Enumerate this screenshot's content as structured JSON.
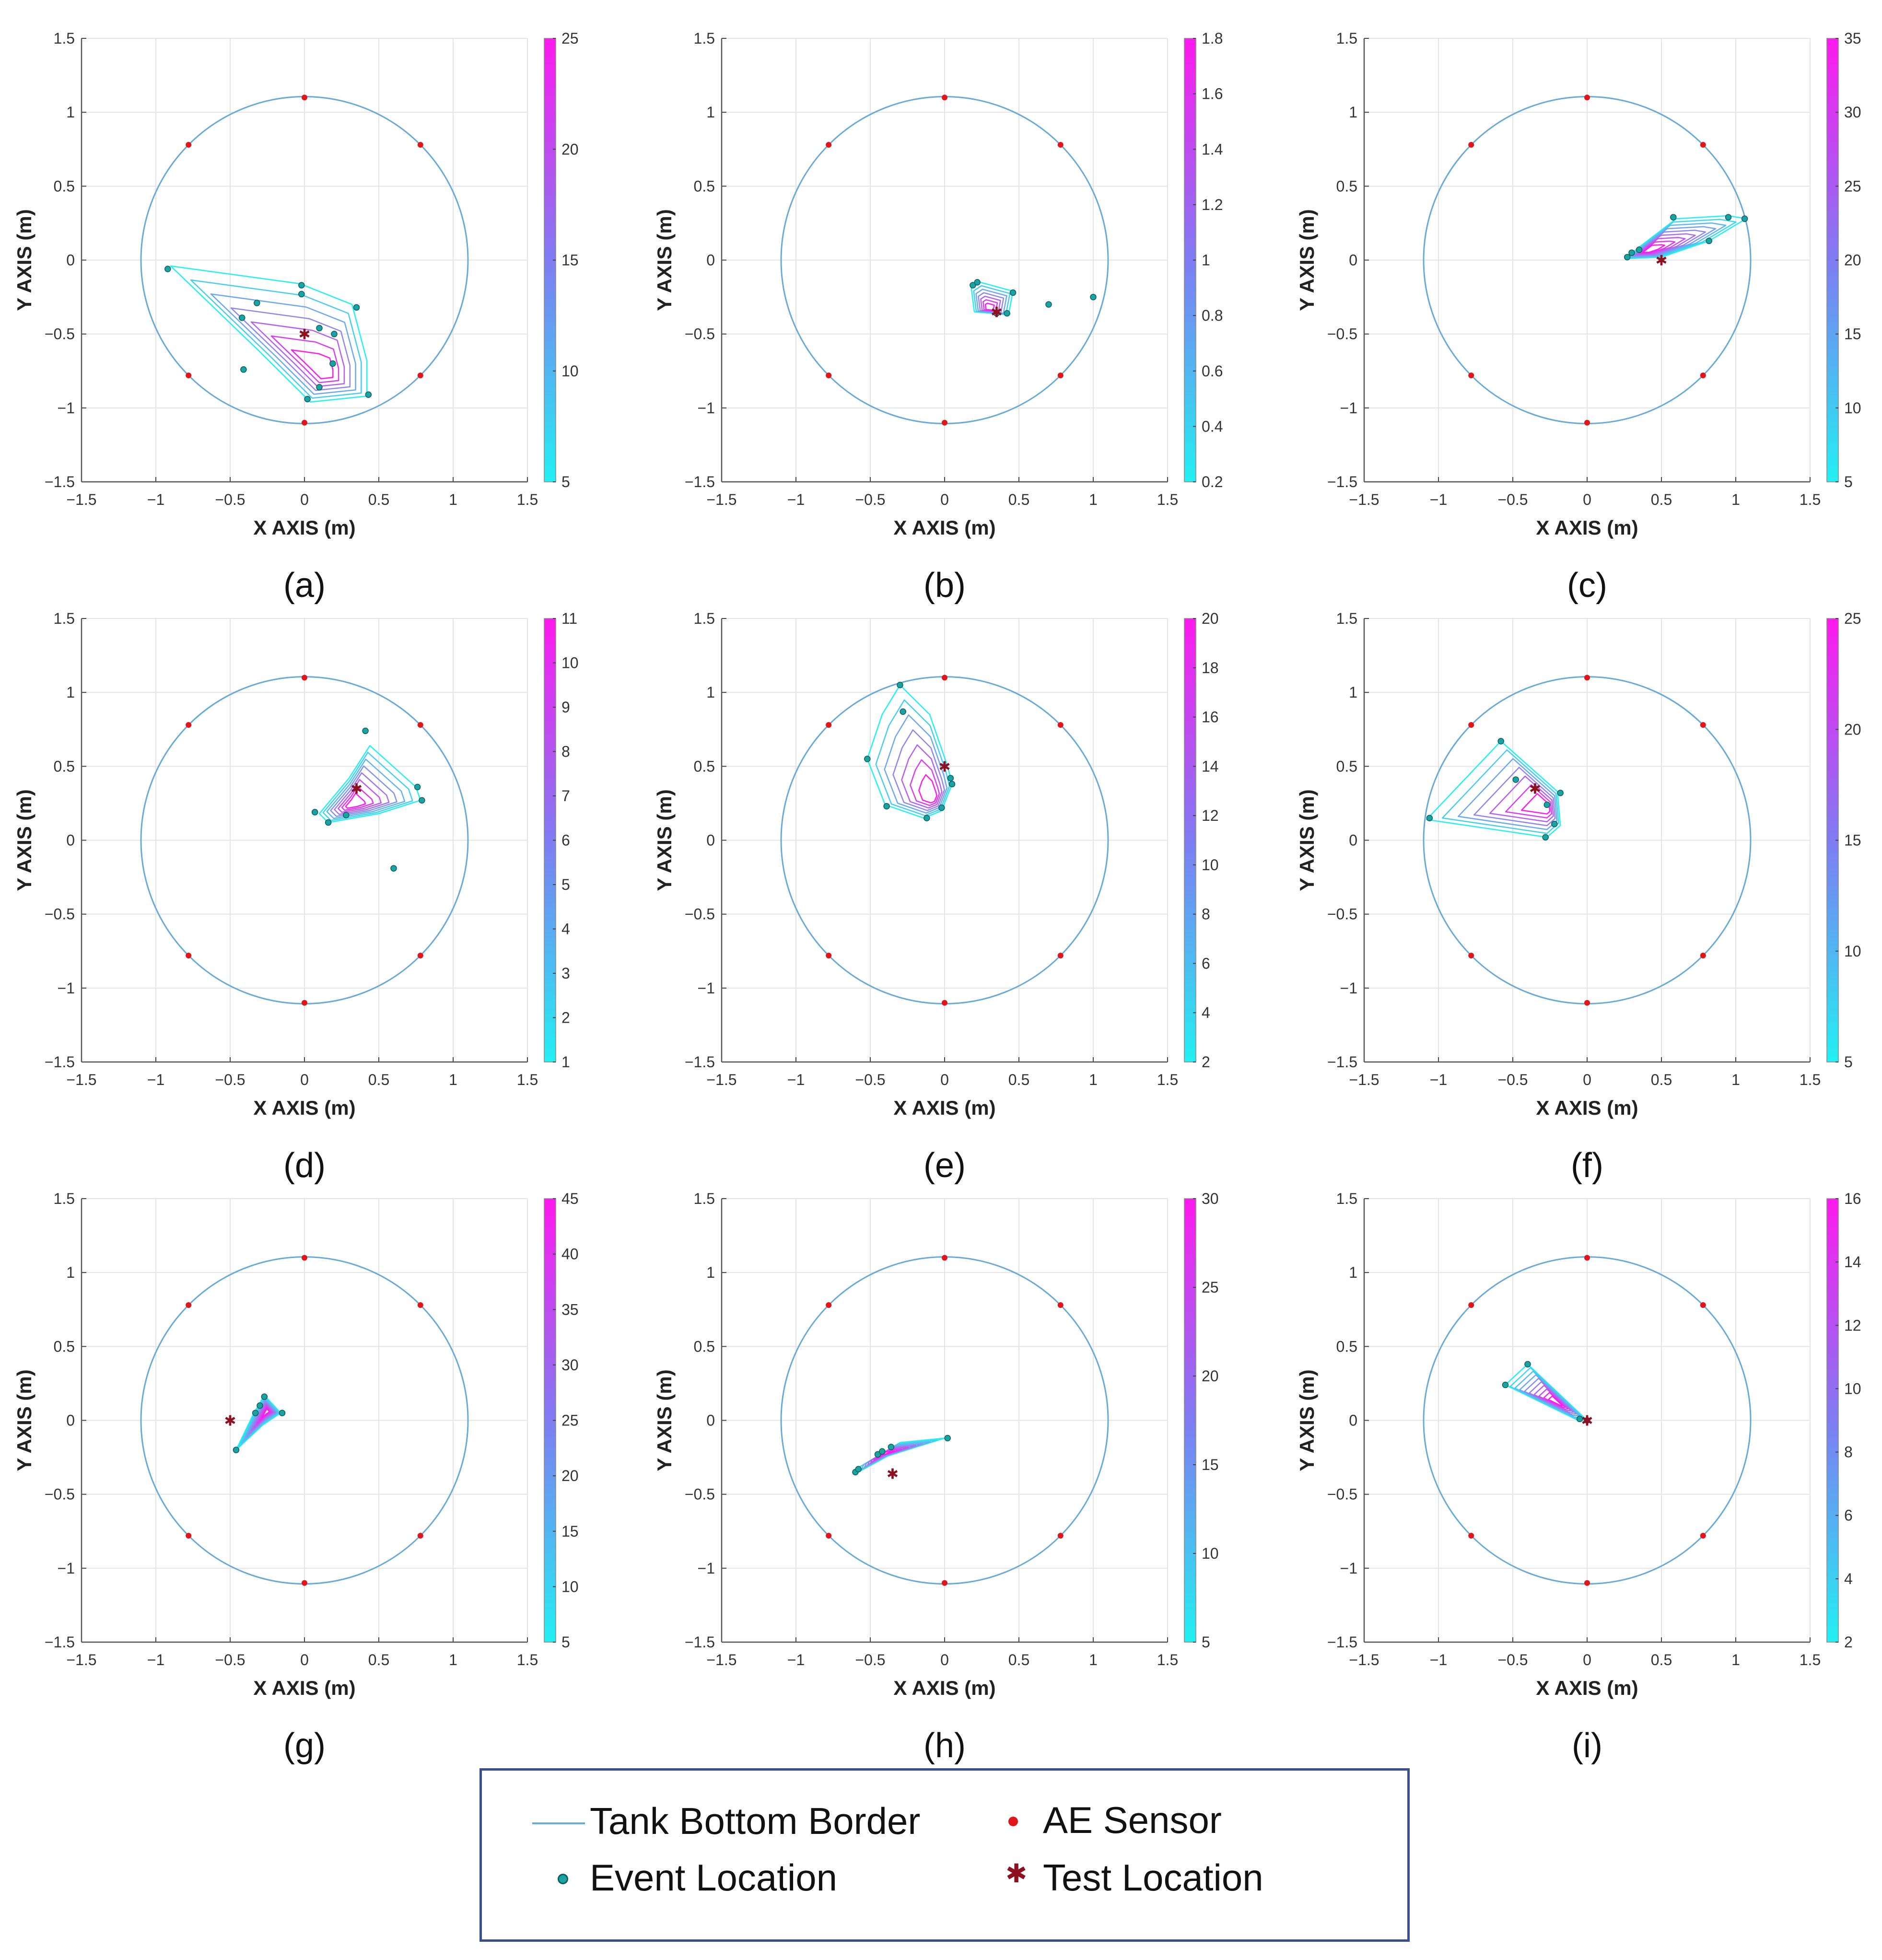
{
  "figure": {
    "panel_labels": [
      "(a)",
      "(b)",
      "(c)",
      "(d)",
      "(e)",
      "(f)",
      "(g)",
      "(h)",
      "(i)"
    ],
    "xlabel": "X AXIS (m)",
    "ylabel": "Y AXIS (m)",
    "ticks": [
      "−1.5",
      "−1",
      "−0.5",
      "0",
      "0.5",
      "1",
      "1.5"
    ],
    "colors": {
      "tank_border": "#6aaad6",
      "ae_sensor": "#e0161b",
      "event": "#1aa3a3",
      "test_location": "#8e1020",
      "colormap_low": "#22f0f2",
      "colormap_high": "#ff19ee",
      "grid": "#e4e4e4"
    }
  },
  "legend": {
    "tank": "Tank Bottom Border",
    "sensor": "AE Sensor",
    "event": "Event Location",
    "test": "Test Location"
  },
  "chart_data": [
    {
      "panel": "(a)",
      "type": "scatter",
      "xlabel": "X AXIS (m)",
      "ylabel": "Y AXIS (m)",
      "xlim": [
        -1.5,
        1.5
      ],
      "ylim": [
        -1.5,
        1.5
      ],
      "tank_radius": 1.1,
      "sensors": [
        [
          0,
          1.1
        ],
        [
          0.78,
          0.78
        ],
        [
          0.78,
          -0.78
        ],
        [
          0,
          -1.1
        ],
        [
          -0.78,
          -0.78
        ],
        [
          -0.78,
          0.78
        ]
      ],
      "events": [
        [
          -0.92,
          -0.06
        ],
        [
          -0.32,
          -0.29
        ],
        [
          -0.42,
          -0.39
        ],
        [
          -0.02,
          -0.17
        ],
        [
          -0.02,
          -0.23
        ],
        [
          0.35,
          -0.32
        ],
        [
          0.1,
          -0.46
        ],
        [
          0.2,
          -0.5
        ],
        [
          -0.41,
          -0.74
        ],
        [
          0.19,
          -0.7
        ],
        [
          0.1,
          -0.86
        ],
        [
          0.43,
          -0.91
        ],
        [
          0.02,
          -0.94
        ]
      ],
      "test_location": [
        0,
        -0.5
      ],
      "contours": {
        "center": [
          0.13,
          -0.76
        ],
        "levels": [
          5,
          10,
          15,
          20,
          25
        ],
        "polygon": [
          [
            -0.9,
            -0.04
          ],
          [
            -0.03,
            -0.16
          ],
          [
            0.32,
            -0.3
          ],
          [
            0.42,
            -0.68
          ],
          [
            0.42,
            -0.92
          ],
          [
            0.04,
            -0.96
          ],
          [
            -0.3,
            -0.62
          ]
        ]
      },
      "colorbar": {
        "min": 5,
        "max": 25,
        "ticks": [
          "5",
          "10",
          "15",
          "20",
          "25"
        ]
      }
    },
    {
      "panel": "(b)",
      "type": "scatter",
      "xlabel": "X AXIS (m)",
      "ylabel": "Y AXIS (m)",
      "xlim": [
        -1.5,
        1.5
      ],
      "ylim": [
        -1.5,
        1.5
      ],
      "tank_radius": 1.1,
      "sensors": [
        [
          0,
          1.1
        ],
        [
          0.78,
          0.78
        ],
        [
          0.78,
          -0.78
        ],
        [
          0,
          -1.1
        ],
        [
          -0.78,
          -0.78
        ],
        [
          -0.78,
          0.78
        ]
      ],
      "events": [
        [
          0.19,
          -0.17
        ],
        [
          0.22,
          -0.15
        ],
        [
          0.46,
          -0.22
        ],
        [
          0.42,
          -0.36
        ],
        [
          0.7,
          -0.3
        ],
        [
          1.0,
          -0.25
        ],
        [
          0.35,
          -0.36
        ]
      ],
      "test_location": [
        0.35,
        -0.35
      ],
      "contours": {
        "center": [
          0.3,
          -0.33
        ],
        "levels": [
          0.2,
          0.6,
          1,
          1.4,
          1.8
        ],
        "polygon": [
          [
            0.18,
            -0.19
          ],
          [
            0.24,
            -0.15
          ],
          [
            0.46,
            -0.21
          ],
          [
            0.43,
            -0.37
          ],
          [
            0.2,
            -0.35
          ]
        ]
      },
      "colorbar": {
        "min": 0.2,
        "max": 1.8,
        "ticks": [
          "0.2",
          "0.4",
          "0.6",
          "0.8",
          "1",
          "1.2",
          "1.4",
          "1.6",
          "1.8"
        ]
      }
    },
    {
      "panel": "(c)",
      "type": "scatter",
      "xlabel": "X AXIS (m)",
      "ylabel": "Y AXIS (m)",
      "xlim": [
        -1.5,
        1.5
      ],
      "ylim": [
        -1.5,
        1.5
      ],
      "tank_radius": 1.1,
      "sensors": [
        [
          0,
          1.1
        ],
        [
          0.78,
          0.78
        ],
        [
          0.78,
          -0.78
        ],
        [
          0,
          -1.1
        ],
        [
          -0.78,
          -0.78
        ],
        [
          -0.78,
          0.78
        ]
      ],
      "events": [
        [
          0.27,
          0.02
        ],
        [
          0.3,
          0.05
        ],
        [
          0.35,
          0.07
        ],
        [
          0.58,
          0.29
        ],
        [
          0.82,
          0.13
        ],
        [
          0.95,
          0.29
        ],
        [
          1.06,
          0.28
        ]
      ],
      "test_location": [
        0.5,
        0.0
      ],
      "contours": {
        "center": [
          0.4,
          0.06
        ],
        "levels": [
          5,
          10,
          15,
          20,
          25,
          30,
          35
        ],
        "polygon": [
          [
            0.26,
            0.01
          ],
          [
            0.34,
            0.08
          ],
          [
            0.6,
            0.28
          ],
          [
            0.95,
            0.3
          ],
          [
            1.07,
            0.28
          ],
          [
            0.82,
            0.13
          ],
          [
            0.5,
            0.02
          ]
        ]
      },
      "colorbar": {
        "min": 5,
        "max": 35,
        "ticks": [
          "5",
          "10",
          "15",
          "20",
          "25",
          "30",
          "35"
        ]
      }
    },
    {
      "panel": "(d)",
      "type": "scatter",
      "xlabel": "X AXIS (m)",
      "ylabel": "Y AXIS (m)",
      "xlim": [
        -1.5,
        1.5
      ],
      "ylim": [
        -1.5,
        1.5
      ],
      "tank_radius": 1.1,
      "sensors": [
        [
          0,
          1.1
        ],
        [
          0.78,
          0.78
        ],
        [
          0.78,
          -0.78
        ],
        [
          0,
          -1.1
        ],
        [
          -0.78,
          -0.78
        ],
        [
          -0.78,
          0.78
        ]
      ],
      "events": [
        [
          0.41,
          0.74
        ],
        [
          0.76,
          0.36
        ],
        [
          0.79,
          0.27
        ],
        [
          0.07,
          0.19
        ],
        [
          0.16,
          0.12
        ],
        [
          0.28,
          0.17
        ],
        [
          0.6,
          -0.19
        ]
      ],
      "test_location": [
        0.35,
        0.35
      ],
      "contours": {
        "center": [
          0.32,
          0.24
        ],
        "levels": [
          1,
          3,
          5,
          7,
          9,
          11
        ],
        "polygon": [
          [
            0.44,
            0.64
          ],
          [
            0.75,
            0.36
          ],
          [
            0.78,
            0.27
          ],
          [
            0.5,
            0.18
          ],
          [
            0.16,
            0.12
          ],
          [
            0.1,
            0.18
          ],
          [
            0.3,
            0.42
          ]
        ]
      },
      "colorbar": {
        "min": 1,
        "max": 11,
        "ticks": [
          "1",
          "2",
          "3",
          "4",
          "5",
          "6",
          "7",
          "8",
          "9",
          "10",
          "11"
        ]
      }
    },
    {
      "panel": "(e)",
      "type": "scatter",
      "xlabel": "X AXIS (m)",
      "ylabel": "Y AXIS (m)",
      "xlim": [
        -1.5,
        1.5
      ],
      "ylim": [
        -1.5,
        1.5
      ],
      "tank_radius": 1.1,
      "sensors": [
        [
          0,
          1.1
        ],
        [
          0.78,
          0.78
        ],
        [
          0.78,
          -0.78
        ],
        [
          0,
          -1.1
        ],
        [
          -0.78,
          -0.78
        ],
        [
          -0.78,
          0.78
        ]
      ],
      "events": [
        [
          -0.3,
          1.05
        ],
        [
          -0.28,
          0.87
        ],
        [
          -0.52,
          0.55
        ],
        [
          -0.39,
          0.23
        ],
        [
          -0.12,
          0.15
        ],
        [
          -0.02,
          0.22
        ],
        [
          0.04,
          0.42
        ],
        [
          0.05,
          0.38
        ]
      ],
      "test_location": [
        0.0,
        0.5
      ],
      "contours": {
        "center": [
          -0.08,
          0.28
        ],
        "levels": [
          2,
          6,
          10,
          14,
          18
        ],
        "polygon": [
          [
            -0.3,
            1.05
          ],
          [
            -0.1,
            0.85
          ],
          [
            0.02,
            0.5
          ],
          [
            0.05,
            0.38
          ],
          [
            -0.02,
            0.2
          ],
          [
            -0.14,
            0.15
          ],
          [
            -0.4,
            0.24
          ],
          [
            -0.52,
            0.55
          ],
          [
            -0.42,
            0.85
          ]
        ]
      },
      "colorbar": {
        "min": 2,
        "max": 20,
        "ticks": [
          "2",
          "4",
          "6",
          "8",
          "10",
          "12",
          "14",
          "16",
          "18",
          "20"
        ]
      }
    },
    {
      "panel": "(f)",
      "type": "scatter",
      "xlabel": "X AXIS (m)",
      "ylabel": "Y AXIS (m)",
      "xlim": [
        -1.5,
        1.5
      ],
      "ylim": [
        -1.5,
        1.5
      ],
      "tank_radius": 1.1,
      "sensors": [
        [
          0,
          1.1
        ],
        [
          0.78,
          0.78
        ],
        [
          0.78,
          -0.78
        ],
        [
          0,
          -1.1
        ],
        [
          -0.78,
          -0.78
        ],
        [
          -0.78,
          0.78
        ]
      ],
      "events": [
        [
          -0.58,
          0.67
        ],
        [
          -0.48,
          0.41
        ],
        [
          -0.27,
          0.24
        ],
        [
          -0.28,
          0.02
        ],
        [
          -0.22,
          0.11
        ],
        [
          -0.18,
          0.32
        ],
        [
          -1.06,
          0.15
        ]
      ],
      "test_location": [
        -0.35,
        0.35
      ],
      "contours": {
        "center": [
          -0.27,
          0.22
        ],
        "levels": [
          5,
          10,
          15,
          20,
          25
        ],
        "polygon": [
          [
            -0.58,
            0.67
          ],
          [
            -0.2,
            0.33
          ],
          [
            -0.18,
            0.1
          ],
          [
            -0.27,
            0.02
          ],
          [
            -1.08,
            0.14
          ]
        ]
      },
      "colorbar": {
        "min": 5,
        "max": 25,
        "ticks": [
          "5",
          "10",
          "15",
          "20",
          "25"
        ]
      }
    },
    {
      "panel": "(g)",
      "type": "scatter",
      "xlabel": "X AXIS (m)",
      "ylabel": "Y AXIS (m)",
      "xlim": [
        -1.5,
        1.5
      ],
      "ylim": [
        -1.5,
        1.5
      ],
      "tank_radius": 1.1,
      "sensors": [
        [
          0,
          1.1
        ],
        [
          0.78,
          0.78
        ],
        [
          0.78,
          -0.78
        ],
        [
          0,
          -1.1
        ],
        [
          -0.78,
          -0.78
        ],
        [
          -0.78,
          0.78
        ]
      ],
      "events": [
        [
          -0.27,
          0.16
        ],
        [
          -0.3,
          0.1
        ],
        [
          -0.33,
          0.05
        ],
        [
          -0.15,
          0.05
        ],
        [
          -0.46,
          -0.2
        ]
      ],
      "test_location": [
        -0.5,
        0.0
      ],
      "contours": {
        "center": [
          -0.25,
          0.06
        ],
        "levels": [
          5,
          10,
          15,
          20,
          25,
          30,
          35,
          40,
          45
        ],
        "polygon": [
          [
            -0.27,
            0.17
          ],
          [
            -0.16,
            0.05
          ],
          [
            -0.28,
            -0.03
          ],
          [
            -0.46,
            -0.2
          ],
          [
            -0.34,
            0.05
          ]
        ]
      },
      "colorbar": {
        "min": 5,
        "max": 45,
        "ticks": [
          "5",
          "10",
          "15",
          "20",
          "25",
          "30",
          "35",
          "40",
          "45"
        ]
      }
    },
    {
      "panel": "(h)",
      "type": "scatter",
      "xlabel": "X AXIS (m)",
      "ylabel": "Y AXIS (m)",
      "xlim": [
        -1.5,
        1.5
      ],
      "ylim": [
        -1.5,
        1.5
      ],
      "tank_radius": 1.1,
      "sensors": [
        [
          0,
          1.1
        ],
        [
          0.78,
          0.78
        ],
        [
          0.78,
          -0.78
        ],
        [
          0,
          -1.1
        ],
        [
          -0.78,
          -0.78
        ],
        [
          -0.78,
          0.78
        ]
      ],
      "events": [
        [
          -0.6,
          -0.35
        ],
        [
          -0.58,
          -0.33
        ],
        [
          -0.45,
          -0.23
        ],
        [
          -0.42,
          -0.21
        ],
        [
          -0.36,
          -0.18
        ],
        [
          0.02,
          -0.12
        ]
      ],
      "test_location": [
        -0.35,
        -0.36
      ],
      "contours": {
        "center": [
          -0.42,
          -0.23
        ],
        "levels": [
          5,
          10,
          15,
          20,
          25,
          30
        ],
        "polygon": [
          [
            -0.6,
            -0.36
          ],
          [
            -0.38,
            -0.24
          ],
          [
            0.0,
            -0.12
          ],
          [
            -0.3,
            -0.15
          ],
          [
            -0.58,
            -0.32
          ]
        ]
      },
      "colorbar": {
        "min": 5,
        "max": 30,
        "ticks": [
          "5",
          "10",
          "15",
          "20",
          "25",
          "30"
        ]
      }
    },
    {
      "panel": "(i)",
      "type": "scatter",
      "xlabel": "X AXIS (m)",
      "ylabel": "Y AXIS (m)",
      "xlim": [
        -1.5,
        1.5
      ],
      "ylim": [
        -1.5,
        1.5
      ],
      "tank_radius": 1.1,
      "sensors": [
        [
          0,
          1.1
        ],
        [
          0.78,
          0.78
        ],
        [
          0.78,
          -0.78
        ],
        [
          0,
          -1.1
        ],
        [
          -0.78,
          -0.78
        ],
        [
          -0.78,
          0.78
        ]
      ],
      "events": [
        [
          -0.4,
          0.38
        ],
        [
          -0.55,
          0.24
        ],
        [
          -0.05,
          0.01
        ],
        [
          0.0,
          0.0
        ]
      ],
      "test_location": [
        0.0,
        0.0
      ],
      "contours": {
        "center": [
          -0.2,
          0.12
        ],
        "levels": [
          2,
          4,
          6,
          8,
          10,
          12,
          14,
          16
        ],
        "polygon": [
          [
            -0.4,
            0.38
          ],
          [
            0.0,
            0.0
          ],
          [
            -0.06,
            0.0
          ],
          [
            -0.55,
            0.24
          ]
        ]
      },
      "colorbar": {
        "min": 2,
        "max": 16,
        "ticks": [
          "2",
          "4",
          "6",
          "8",
          "10",
          "12",
          "14",
          "16"
        ]
      }
    }
  ]
}
